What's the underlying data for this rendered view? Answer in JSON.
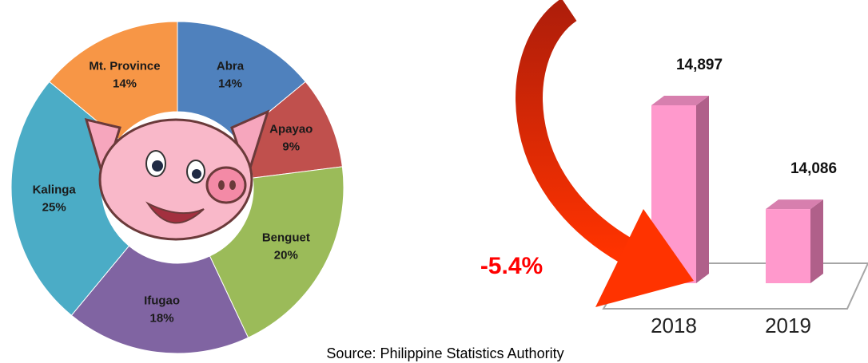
{
  "chart_data": [
    {
      "type": "pie",
      "categories": [
        "Abra",
        "Apayao",
        "Benguet",
        "Ifugao",
        "Kalinga",
        "Mt. Province"
      ],
      "values": [
        14,
        9,
        20,
        18,
        25,
        14
      ],
      "value_labels": [
        "14%",
        "9%",
        "20%",
        "18%",
        "25%",
        "14%"
      ],
      "colors": [
        "#4f81bd",
        "#c0504d",
        "#9bbb59",
        "#8064a2",
        "#4bacc6",
        "#f79646"
      ]
    },
    {
      "type": "bar",
      "categories": [
        "2018",
        "2019"
      ],
      "values": [
        14897,
        14086
      ],
      "value_labels": [
        "14,897",
        "14,086"
      ],
      "color": "#ff99cc",
      "annotation": "-5.4%"
    }
  ],
  "source": "Source: Philippine Statistics Authority"
}
